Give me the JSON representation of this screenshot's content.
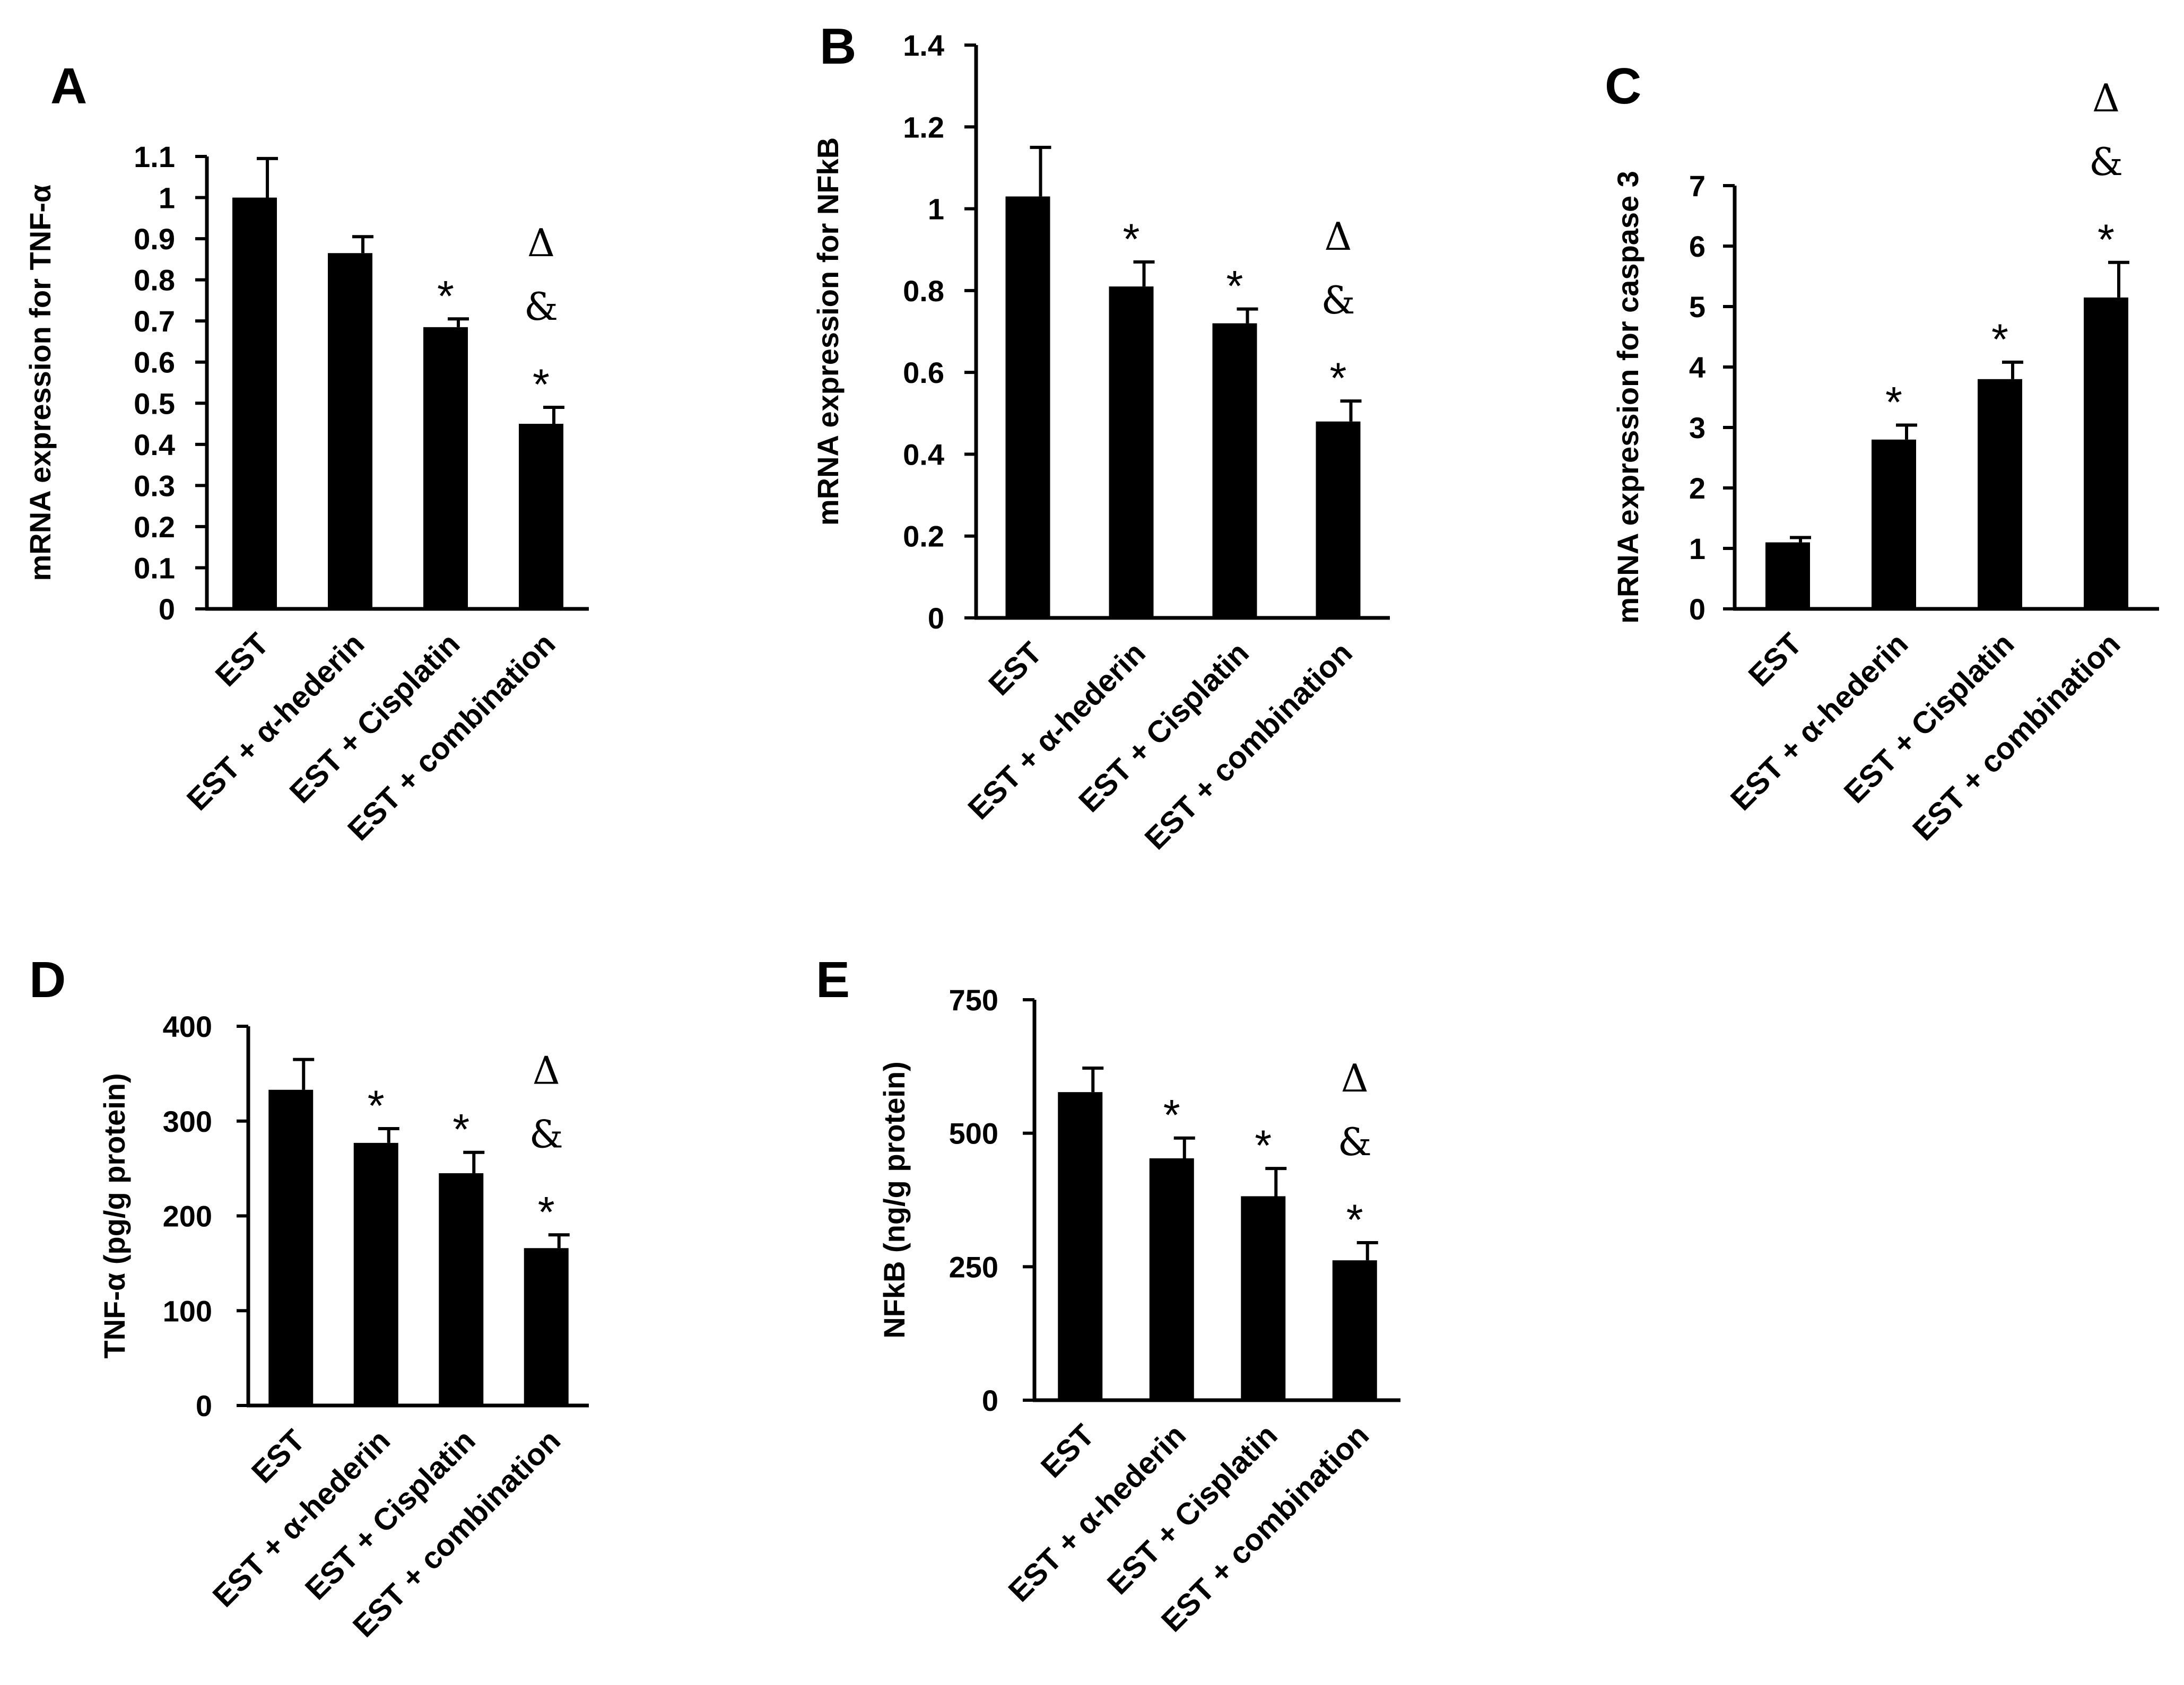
{
  "chart_data": [
    {
      "panel": "A",
      "type": "bar",
      "ylabel": "mRNA expression for TNF-α",
      "categories": [
        "EST",
        "EST + α-hederin",
        "EST + Cisplatin",
        "EST + combination"
      ],
      "values": [
        1.0,
        0.865,
        0.685,
        0.45
      ],
      "errors": [
        0.095,
        0.04,
        0.02,
        0.04
      ],
      "ylim": [
        0,
        1.1
      ],
      "ticks": [
        "0",
        "0.1",
        "0.2",
        "0.3",
        "0.4",
        "0.5",
        "0.6",
        "0.7",
        "0.8",
        "0.9",
        "1",
        "1.1"
      ],
      "annotations": [
        [],
        [],
        [
          "*"
        ],
        [
          "Δ",
          "&",
          "*"
        ]
      ]
    },
    {
      "panel": "B",
      "type": "bar",
      "ylabel": "mRNA expression for NFkB",
      "categories": [
        "EST",
        "EST + α-hederin",
        "EST + Cisplatin",
        "EST + combination"
      ],
      "values": [
        1.03,
        0.81,
        0.72,
        0.48
      ],
      "errors": [
        0.12,
        0.06,
        0.035,
        0.05
      ],
      "ylim": [
        0,
        1.4
      ],
      "ticks": [
        "0",
        "0.2",
        "0.4",
        "0.6",
        "0.8",
        "1",
        "1.2",
        "1.4"
      ],
      "annotations": [
        [],
        [
          "*"
        ],
        [
          "*"
        ],
        [
          "Δ",
          "&",
          "*"
        ]
      ]
    },
    {
      "panel": "C",
      "type": "bar",
      "ylabel": "mRNA expression for caspase 3",
      "categories": [
        "EST",
        "EST + α-hederin",
        "EST + Cisplatin",
        "EST + combination"
      ],
      "values": [
        1.1,
        2.8,
        3.8,
        5.15
      ],
      "errors": [
        0.08,
        0.24,
        0.28,
        0.58
      ],
      "ylim": [
        0,
        7
      ],
      "ticks": [
        "0",
        "1",
        "2",
        "3",
        "4",
        "5",
        "6",
        "7"
      ],
      "annotations": [
        [],
        [
          "*"
        ],
        [
          "*"
        ],
        [
          "Δ",
          "&",
          "*"
        ]
      ]
    },
    {
      "panel": "D",
      "type": "bar",
      "ylabel": "TNF-α (pg/g protein)",
      "categories": [
        "EST",
        "EST + α-hederin",
        "EST + Cisplatin",
        "EST + combination"
      ],
      "values": [
        333,
        277,
        245,
        166
      ],
      "errors": [
        32,
        15,
        22,
        14
      ],
      "ylim": [
        0,
        400
      ],
      "ticks": [
        "0",
        "100",
        "200",
        "300",
        "400"
      ],
      "annotations": [
        [],
        [
          "*"
        ],
        [
          "*"
        ],
        [
          "Δ",
          "&",
          "*"
        ]
      ]
    },
    {
      "panel": "E",
      "type": "bar",
      "ylabel": "NFkB (ng/g protein)",
      "categories": [
        "EST",
        "EST + α-hederin",
        "EST + Cisplatin",
        "EST + combination"
      ],
      "values": [
        577,
        453,
        382,
        262
      ],
      "errors": [
        45,
        38,
        52,
        33
      ],
      "ylim": [
        0,
        750
      ],
      "ticks": [
        "0",
        "250",
        "500",
        "750"
      ],
      "annotations": [
        [],
        [
          "*"
        ],
        [
          "*"
        ],
        [
          "Δ",
          "&",
          "*"
        ]
      ]
    }
  ]
}
